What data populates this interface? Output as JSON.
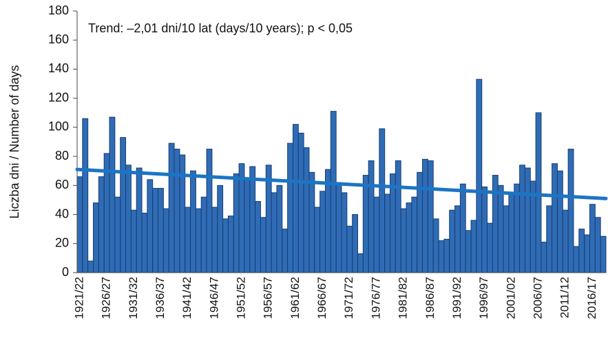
{
  "chart_data": {
    "type": "bar",
    "annotation": "Trend: –2,01 dni/10 lat (days/10 years); p < 0,05",
    "y_label": "Liczba dni / Number of days",
    "categories": [
      "1921/22",
      null,
      null,
      null,
      null,
      "1926/27",
      null,
      null,
      null,
      null,
      "1931/32",
      null,
      null,
      null,
      null,
      "1936/37",
      null,
      null,
      null,
      null,
      "1941/42",
      null,
      null,
      null,
      null,
      "1946/47",
      null,
      null,
      null,
      null,
      "1951/52",
      null,
      null,
      null,
      null,
      "1956/57",
      null,
      null,
      null,
      null,
      "1961/62",
      null,
      null,
      null,
      null,
      "1966/67",
      null,
      null,
      null,
      null,
      "1971/72",
      null,
      null,
      null,
      null,
      "1976/77",
      null,
      null,
      null,
      null,
      "1981/82",
      null,
      null,
      null,
      null,
      "1986/87",
      null,
      null,
      null,
      null,
      "1991/92",
      null,
      null,
      null,
      null,
      "1996/97",
      null,
      null,
      null,
      null,
      "2001/02",
      null,
      null,
      null,
      null,
      "2006/07",
      null,
      null,
      null,
      null,
      "2011/12",
      null,
      null,
      null,
      null,
      "2016/17",
      null,
      null
    ],
    "values": [
      66,
      106,
      8,
      48,
      66,
      82,
      107,
      52,
      93,
      74,
      43,
      72,
      41,
      64,
      58,
      58,
      44,
      89,
      85,
      81,
      45,
      70,
      44,
      52,
      85,
      45,
      60,
      37,
      39,
      68,
      75,
      64,
      73,
      49,
      38,
      74,
      55,
      60,
      30,
      89,
      102,
      96,
      86,
      69,
      45,
      56,
      71,
      111,
      62,
      55,
      32,
      40,
      13,
      67,
      77,
      52,
      99,
      54,
      68,
      77,
      44,
      48,
      52,
      69,
      78,
      77,
      37,
      22,
      23,
      43,
      46,
      61,
      29,
      36,
      133,
      59,
      34,
      67,
      60,
      46,
      54,
      61,
      74,
      72,
      63,
      110,
      21,
      46,
      75,
      70,
      43,
      85,
      18,
      30,
      26,
      47,
      38,
      25
    ],
    "color": "#2f6cb5",
    "trend": {
      "color": "#1b75c4",
      "values": [
        71,
        51
      ]
    },
    "ylim": [
      0,
      180
    ],
    "yticks": [
      0,
      20,
      40,
      60,
      80,
      100,
      120,
      140,
      160,
      180
    ]
  }
}
